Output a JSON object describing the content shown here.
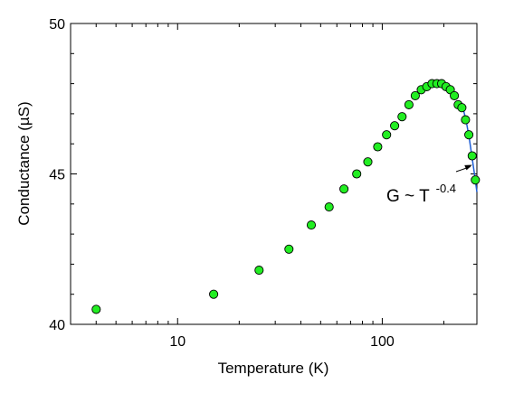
{
  "chart_data": {
    "type": "scatter",
    "title": "",
    "xlabel": "Temperature (K)",
    "ylabel": "Conductance (µS)",
    "xscale": "log",
    "xlim": [
      3,
      290
    ],
    "ylim": [
      40,
      50
    ],
    "grid": false,
    "legend": "none",
    "x_ticks": [
      {
        "value": 10,
        "label": "10"
      },
      {
        "value": 100,
        "label": "100"
      }
    ],
    "y_ticks": [
      {
        "value": 40,
        "label": "40"
      },
      {
        "value": 45,
        "label": "45"
      },
      {
        "value": 50,
        "label": "50"
      }
    ],
    "series": [
      {
        "marker_color": "#22ee22",
        "x": [
          4,
          15,
          25,
          35,
          45,
          55,
          65,
          75,
          85,
          95,
          105,
          115,
          125,
          135,
          145,
          155,
          165,
          175,
          185,
          195,
          205,
          215,
          225,
          235,
          245,
          255,
          265,
          275,
          285
        ],
        "y": [
          40.5,
          41.0,
          41.8,
          42.5,
          43.3,
          43.9,
          44.5,
          45.0,
          45.4,
          45.9,
          46.3,
          46.6,
          46.9,
          47.3,
          47.6,
          47.8,
          47.9,
          48.0,
          48.0,
          48.0,
          47.9,
          47.8,
          47.6,
          47.3,
          47.2,
          46.8,
          46.3,
          45.6,
          44.8
        ]
      }
    ],
    "fit_line": {
      "color": "#1f5fd6",
      "x": [
        250,
        258,
        266,
        274,
        282,
        290
      ],
      "y": [
        47.1,
        46.7,
        46.2,
        45.6,
        45.0,
        44.4
      ]
    },
    "annotation": {
      "label": "G ~ T",
      "superscript": "-0.4",
      "arrow_to": [
        275,
        45.3
      ]
    }
  }
}
